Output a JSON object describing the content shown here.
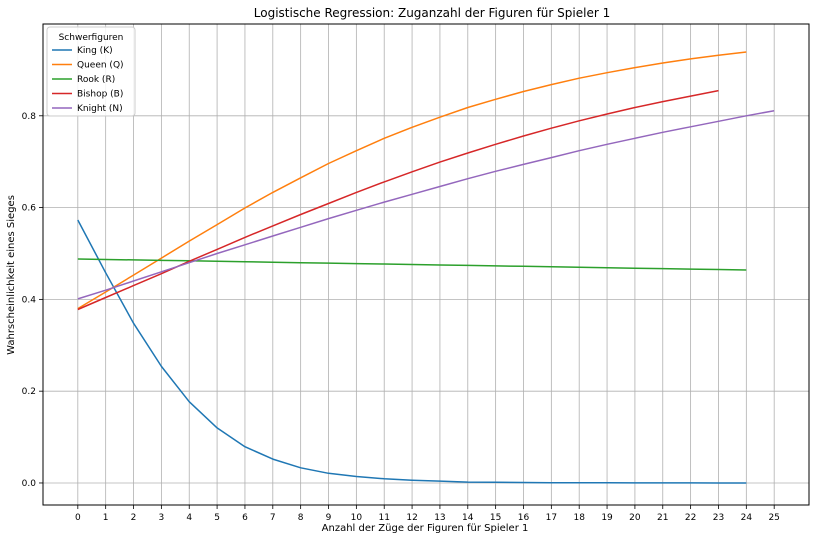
{
  "chart_data": {
    "type": "line",
    "title": "Logistische Regression: Zuganzahl der Figuren für Spieler 1",
    "xlabel": "Anzahl der Züge der Figuren für Spieler 1",
    "ylabel": "Wahrscheinlichkeit eines Sieges",
    "xlim": [
      -1.25,
      26.25
    ],
    "ylim": [
      -0.048,
      1.0
    ],
    "x_ticks": [
      0,
      1,
      2,
      3,
      4,
      5,
      6,
      7,
      8,
      9,
      10,
      11,
      12,
      13,
      14,
      15,
      16,
      17,
      18,
      19,
      20,
      21,
      22,
      23,
      24,
      25
    ],
    "y_ticks": [
      0.0,
      0.2,
      0.4,
      0.6,
      0.8
    ],
    "y_tick_labels": [
      "0.0",
      "0.2",
      "0.4",
      "0.6",
      "0.8"
    ],
    "grid": true,
    "legend": {
      "title": "Schwerfiguren",
      "placement": "top-left"
    },
    "series": [
      {
        "name": "King (K)",
        "color": "#1f77b4",
        "x": [
          0,
          1,
          2,
          3,
          4,
          5,
          6,
          7,
          8,
          9,
          10,
          11,
          12,
          13,
          14,
          15,
          16,
          17,
          18,
          19,
          20,
          21,
          22,
          23,
          24
        ],
        "values": [
          0.573,
          0.458,
          0.348,
          0.254,
          0.177,
          0.12,
          0.079,
          0.052,
          0.033,
          0.021,
          0.014,
          0.009,
          0.006,
          0.004,
          0.002,
          0.0015,
          0.001,
          0.0006,
          0.0004,
          0.0003,
          0.0002,
          0.0001,
          0.0001,
          0.0,
          0.0
        ]
      },
      {
        "name": "Queen (Q)",
        "color": "#ff7f0e",
        "x": [
          0,
          1,
          2,
          3,
          4,
          5,
          6,
          7,
          8,
          9,
          10,
          11,
          12,
          13,
          14,
          15,
          16,
          17,
          18,
          19,
          20,
          21,
          22,
          23,
          24
        ],
        "values": [
          0.38,
          0.416,
          0.453,
          0.49,
          0.527,
          0.563,
          0.599,
          0.633,
          0.665,
          0.696,
          0.724,
          0.751,
          0.775,
          0.797,
          0.818,
          0.836,
          0.853,
          0.868,
          0.882,
          0.894,
          0.905,
          0.915,
          0.924,
          0.932,
          0.939
        ]
      },
      {
        "name": "Rook (R)",
        "color": "#2ca02c",
        "x": [
          0,
          1,
          2,
          3,
          4,
          5,
          6,
          7,
          8,
          9,
          10,
          11,
          12,
          13,
          14,
          15,
          16,
          17,
          18,
          19,
          20,
          21,
          22,
          23,
          24
        ],
        "values": [
          0.488,
          0.487,
          0.486,
          0.485,
          0.484,
          0.483,
          0.482,
          0.481,
          0.48,
          0.479,
          0.478,
          0.477,
          0.476,
          0.475,
          0.474,
          0.473,
          0.472,
          0.471,
          0.47,
          0.469,
          0.468,
          0.467,
          0.466,
          0.465,
          0.464
        ]
      },
      {
        "name": "Bishop (B)",
        "color": "#d62728",
        "x": [
          0,
          1,
          2,
          3,
          4,
          5,
          6,
          7,
          8,
          9,
          10,
          11,
          12,
          13,
          14,
          15,
          16,
          17,
          18,
          19,
          20,
          21,
          22,
          23
        ],
        "values": [
          0.378,
          0.404,
          0.43,
          0.456,
          0.483,
          0.509,
          0.535,
          0.56,
          0.585,
          0.609,
          0.633,
          0.656,
          0.678,
          0.699,
          0.719,
          0.738,
          0.756,
          0.773,
          0.789,
          0.804,
          0.818,
          0.831,
          0.843,
          0.855
        ]
      },
      {
        "name": "Knight (N)",
        "color": "#9467bd",
        "x": [
          0,
          1,
          2,
          3,
          4,
          5,
          6,
          7,
          8,
          9,
          10,
          11,
          12,
          13,
          14,
          15,
          16,
          17,
          18,
          19,
          20,
          21,
          22,
          23,
          24,
          25
        ],
        "values": [
          0.401,
          0.42,
          0.44,
          0.46,
          0.48,
          0.5,
          0.519,
          0.538,
          0.557,
          0.576,
          0.594,
          0.612,
          0.629,
          0.646,
          0.663,
          0.679,
          0.694,
          0.709,
          0.724,
          0.738,
          0.751,
          0.764,
          0.776,
          0.788,
          0.8,
          0.811
        ]
      }
    ]
  }
}
